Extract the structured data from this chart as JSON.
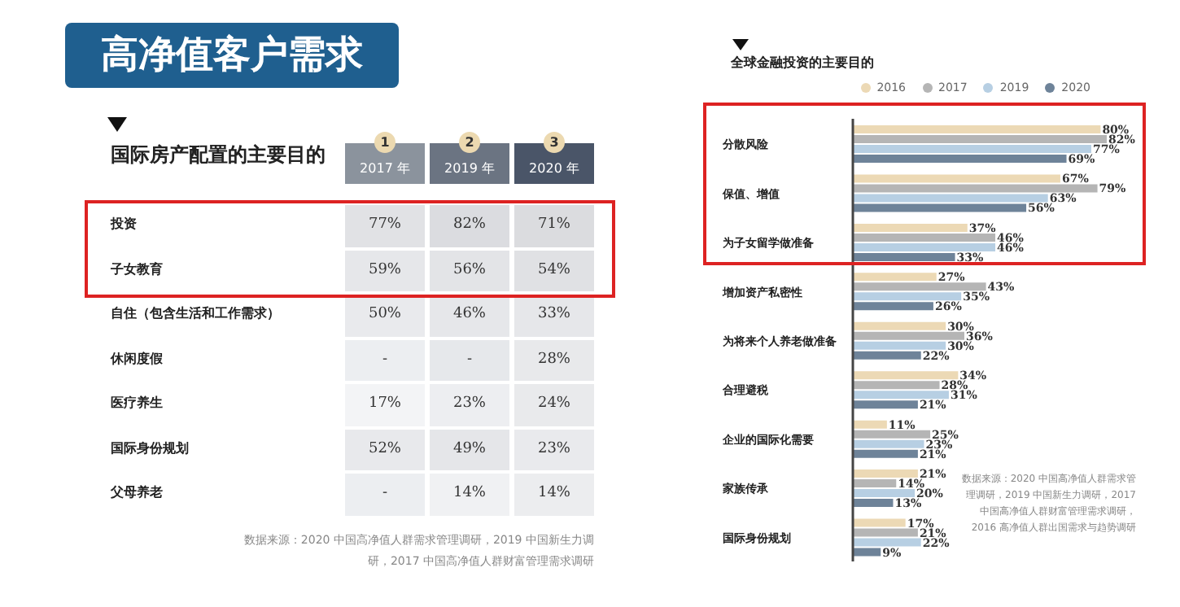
{
  "chart_data": [
    {
      "type": "heatmap",
      "title": "高净值客户需求",
      "subtitle": "国际房产配置的主要目的",
      "categories": [
        "2017 年",
        "2019 年",
        "2020 年"
      ],
      "y_categories": [
        "投资",
        "子女教育",
        "自住（包含生活和工作需求）",
        "休闲度假",
        "医疗养生",
        "国际身份规划",
        "父母养老"
      ],
      "cells": [
        [
          77,
          82,
          71
        ],
        [
          59,
          56,
          54
        ],
        [
          50,
          46,
          33
        ],
        [
          null,
          null,
          28
        ],
        [
          17,
          23,
          24
        ],
        [
          52,
          49,
          23
        ],
        [
          null,
          14,
          14
        ]
      ],
      "cell_labels": [
        [
          "77%",
          "82%",
          "71%"
        ],
        [
          "59%",
          "56%",
          "54%"
        ],
        [
          "50%",
          "46%",
          "33%"
        ],
        [
          "-",
          "-",
          "28%"
        ],
        [
          "17%",
          "23%",
          "24%"
        ],
        [
          "52%",
          "49%",
          "23%"
        ],
        [
          "-",
          "14%",
          "14%"
        ]
      ],
      "annotations": [
        "1",
        "2",
        "3",
        "数据来源：2020 中国高净值人群需求管理调研，2019 中国新生力调研，2017 中国高净值人群财富管理需求调研"
      ]
    },
    {
      "type": "bar",
      "orientation": "horizontal",
      "title": "全球金融投资的主要目的",
      "legend": "top right",
      "categories": [
        "分散风险",
        "保值、增值",
        "为子女留学做准备",
        "增加资产私密性",
        "为将来个人养老做准备",
        "合理避税",
        "企业的国际化需要",
        "家族传承",
        "国际身份规划"
      ],
      "series": [
        {
          "name": "2016",
          "color": "#ecd9b5",
          "values": [
            80,
            67,
            37,
            27,
            30,
            34,
            11,
            21,
            17
          ],
          "value_labels": [
            "80%",
            "67%",
            "37%",
            "27%",
            "30%",
            "34%",
            "11%",
            "21%",
            "17%"
          ]
        },
        {
          "name": "2017",
          "color": "#b5b5b5",
          "values": [
            82,
            79,
            46,
            43,
            36,
            28,
            25,
            14,
            21
          ],
          "value_labels": [
            "82%",
            "79%",
            "46%",
            "43%",
            "36%",
            "28%",
            "25%",
            "14%",
            "21%"
          ]
        },
        {
          "name": "2019",
          "color": "#b7cfe3",
          "values": [
            77,
            63,
            46,
            35,
            30,
            31,
            23,
            20,
            22
          ],
          "value_labels": [
            "77%",
            "63%",
            "46%",
            "35%",
            "30%",
            "31%",
            "23%",
            "20%",
            "22%"
          ]
        },
        {
          "name": "2020",
          "color": "#6e8399",
          "values": [
            69,
            56,
            33,
            26,
            22,
            21,
            21,
            13,
            9
          ],
          "value_labels": [
            "69%",
            "56%",
            "33%",
            "26%",
            "22%",
            "21%",
            "21%",
            "13%",
            "9%"
          ]
        }
      ],
      "annotations": [
        "数据来源：2020 中国高净值人群需求管理调研，2019 中国新生力调研，2017 中国高净值人群财富管理需求调研，2016 高净值人群出国需求与趋势调研"
      ]
    }
  ]
}
